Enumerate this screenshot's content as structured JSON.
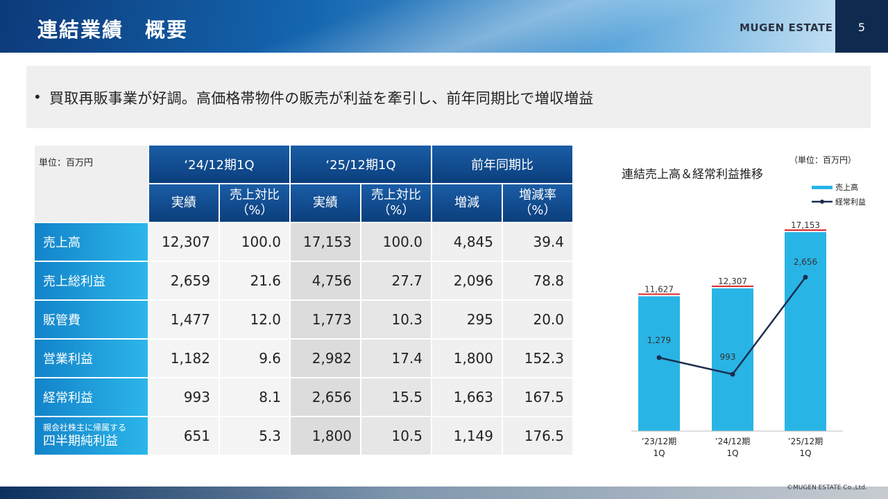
{
  "header": {
    "title": "連結業績　概要",
    "brand": "MUGEN ESTATE",
    "page_number": "5"
  },
  "summary": {
    "bullet": "•",
    "text": "買取再販事業が好調。高価格帯物件の販売が利益を牽引し、前年同期比で増収増益"
  },
  "table": {
    "unit": "単位：百万円",
    "groups": [
      "‘24/12期1Q",
      "‘25/12期1Q",
      "前年同期比"
    ],
    "subheaders": [
      {
        "l1": "実績",
        "l2": ""
      },
      {
        "l1": "売上対比",
        "l2": "（%）"
      },
      {
        "l1": "実績",
        "l2": ""
      },
      {
        "l1": "売上対比",
        "l2": "（%）"
      },
      {
        "l1": "増減",
        "l2": ""
      },
      {
        "l1": "増減率",
        "l2": "（%）"
      }
    ],
    "rows": [
      {
        "label_small": "",
        "label": "売上高",
        "values": [
          "12,307",
          "100.0",
          "17,153",
          "100.0",
          "4,845",
          "39.4"
        ]
      },
      {
        "label_small": "",
        "label": "売上総利益",
        "values": [
          "2,659",
          "21.6",
          "4,756",
          "27.7",
          "2,096",
          "78.8"
        ]
      },
      {
        "label_small": "",
        "label": "販管費",
        "values": [
          "1,477",
          "12.0",
          "1,773",
          "10.3",
          "295",
          "20.0"
        ]
      },
      {
        "label_small": "",
        "label": "営業利益",
        "values": [
          "1,182",
          "9.6",
          "2,982",
          "17.4",
          "1,800",
          "152.3"
        ]
      },
      {
        "label_small": "",
        "label": "経常利益",
        "values": [
          "993",
          "8.1",
          "2,656",
          "15.5",
          "1,663",
          "167.5"
        ]
      },
      {
        "label_small": "親会社株主に帰属する",
        "label": "四半期純利益",
        "values": [
          "651",
          "5.3",
          "1,800",
          "10.5",
          "1,149",
          "176.5"
        ]
      }
    ]
  },
  "chart_data": {
    "type": "bar",
    "title": "連結売上高＆経常利益推移",
    "unit": "（単位：百万円）",
    "categories": [
      {
        "l1": "’23/12期",
        "l2": "1Q"
      },
      {
        "l1": "’24/12期",
        "l2": "1Q"
      },
      {
        "l1": "’25/12期",
        "l2": "1Q"
      }
    ],
    "series": [
      {
        "name": "売上高",
        "type": "bar",
        "values": [
          11627,
          12307,
          17153
        ],
        "labels": [
          "11,627",
          "12,307",
          "17,153"
        ],
        "color": "#29b4e6"
      },
      {
        "name": "経常利益",
        "type": "line",
        "values": [
          1279,
          993,
          2656
        ],
        "labels": [
          "1,279",
          "993",
          "2,656"
        ],
        "color": "#1c2e4f"
      }
    ],
    "legend_position": "top-right",
    "accent_underline_color": "#d9262a"
  },
  "footer": {
    "copyright": "©MUGEN ESTATE Co.,Ltd."
  }
}
